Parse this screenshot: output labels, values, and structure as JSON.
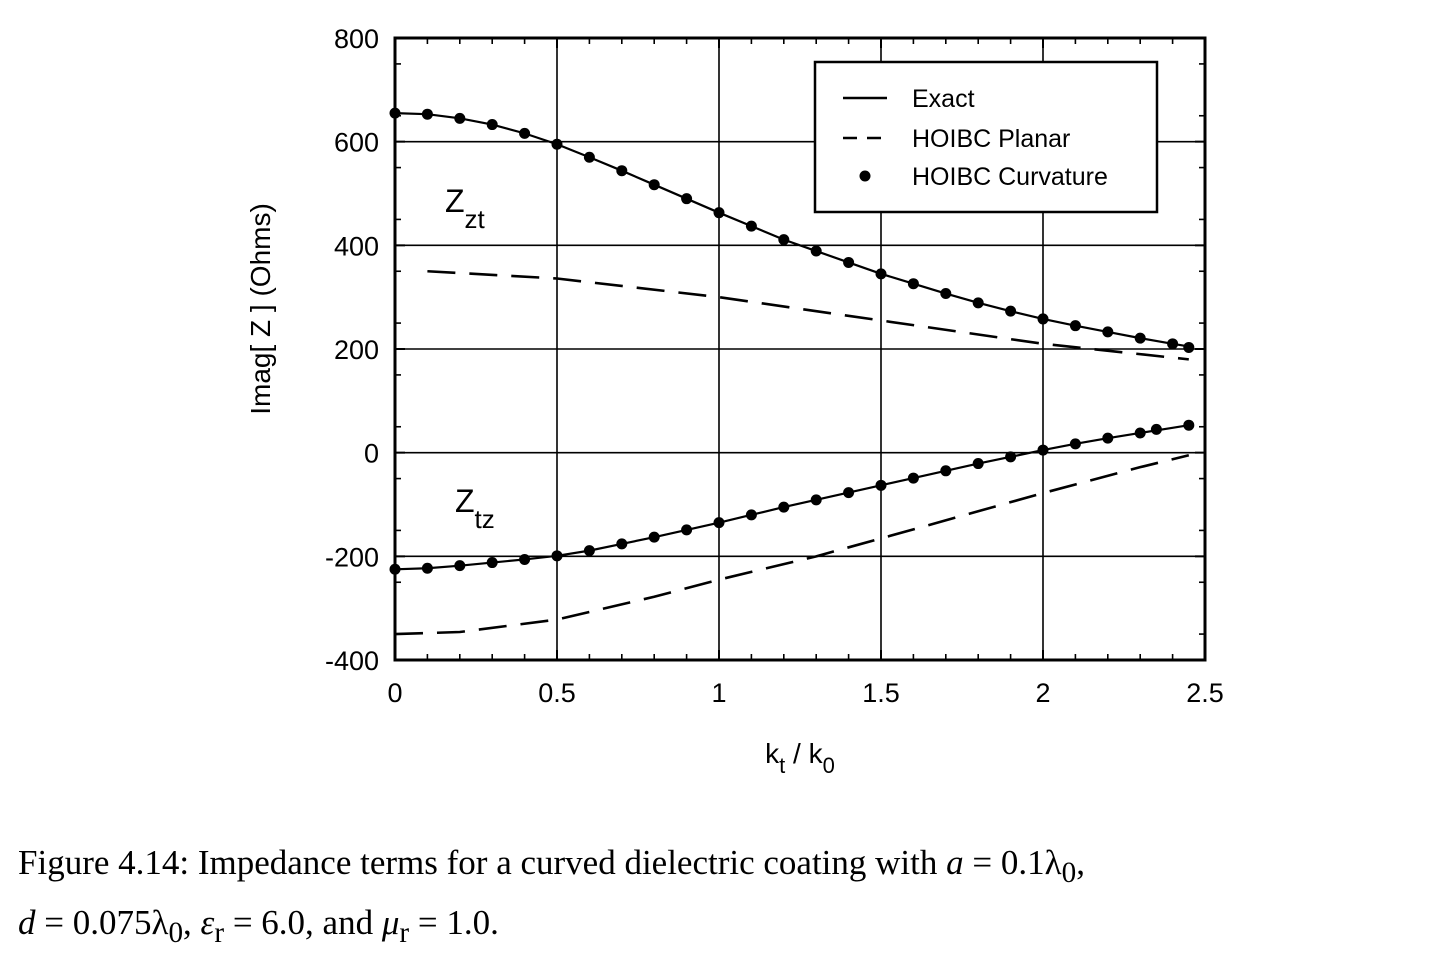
{
  "chart_data": {
    "type": "line",
    "xlabel": "k_t / k_0",
    "xlabel_main": "k",
    "xlabel_sub": "t",
    "xlabel_slash": " / k",
    "xlabel_sub2": "0",
    "ylabel": "Imag[ Z ] (Ohms)",
    "xlim": [
      0,
      2.5
    ],
    "ylim": [
      -400,
      800
    ],
    "x_ticks": [
      "0",
      "0.5",
      "1",
      "1.5",
      "2",
      "2.5"
    ],
    "y_ticks": [
      "800",
      "600",
      "400",
      "200",
      "0",
      "-200",
      "-400"
    ],
    "grid": true,
    "legend_position": "top-right",
    "legend": [
      "Exact",
      "HOIBC Planar",
      "HOIBC Curvature"
    ],
    "annotations": [
      {
        "main": "Z",
        "sub": "zt"
      },
      {
        "main": "Z",
        "sub": "tz"
      }
    ],
    "series": [
      {
        "name": "Exact",
        "style": "solid",
        "group": "zt",
        "x": [
          0,
          0.1,
          0.2,
          0.3,
          0.4,
          0.5,
          0.6,
          0.7,
          0.8,
          0.9,
          1.0,
          1.1,
          1.2,
          1.3,
          1.4,
          1.5,
          1.6,
          1.7,
          1.8,
          1.9,
          2.0,
          2.1,
          2.2,
          2.3,
          2.4,
          2.45
        ],
        "y": [
          655,
          653,
          645,
          633,
          616,
          595,
          570,
          544,
          517,
          490,
          463,
          437,
          411,
          389,
          367,
          345,
          326,
          307,
          289,
          273,
          258,
          245,
          233,
          221,
          210,
          205
        ]
      },
      {
        "name": "HOIBC Planar",
        "style": "dashed",
        "group": "zt",
        "x": [
          0.1,
          0.5,
          1.0,
          1.5,
          2.0,
          2.45
        ],
        "y": [
          350,
          336,
          300,
          255,
          210,
          180
        ]
      },
      {
        "name": "HOIBC Curvature",
        "style": "markers",
        "group": "zt",
        "x": [
          0,
          0.1,
          0.2,
          0.3,
          0.4,
          0.5,
          0.6,
          0.7,
          0.8,
          0.9,
          1.0,
          1.1,
          1.2,
          1.3,
          1.4,
          1.5,
          1.6,
          1.7,
          1.8,
          1.9,
          2.0,
          2.1,
          2.2,
          2.3,
          2.4,
          2.45
        ],
        "y": [
          655,
          653,
          645,
          633,
          616,
          595,
          570,
          544,
          517,
          490,
          463,
          437,
          411,
          389,
          367,
          345,
          326,
          307,
          289,
          273,
          258,
          245,
          233,
          221,
          210,
          203
        ]
      },
      {
        "name": "Exact",
        "style": "solid",
        "group": "tz",
        "x": [
          0,
          0.1,
          0.2,
          0.3,
          0.4,
          0.5,
          0.6,
          0.7,
          0.8,
          0.9,
          1.0,
          1.1,
          1.2,
          1.3,
          1.4,
          1.5,
          1.6,
          1.7,
          1.8,
          1.9,
          2.0,
          2.1,
          2.2,
          2.3,
          2.4,
          2.45
        ],
        "y": [
          -225,
          -223,
          -218,
          -212,
          -206,
          -199,
          -189,
          -176,
          -163,
          -149,
          -135,
          -120,
          -105,
          -91,
          -77,
          -63,
          -49,
          -35,
          -21,
          -8,
          5,
          17,
          28,
          38,
          48,
          53
        ]
      },
      {
        "name": "HOIBC Planar",
        "style": "dashed",
        "group": "tz",
        "x": [
          0,
          0.2,
          0.5,
          0.8,
          1.0,
          1.3,
          1.6,
          2.0,
          2.3,
          2.45
        ],
        "y": [
          -350,
          -346,
          -322,
          -278,
          -245,
          -200,
          -148,
          -78,
          -28,
          -5
        ]
      },
      {
        "name": "HOIBC Curvature",
        "style": "markers",
        "group": "tz",
        "x": [
          0,
          0.1,
          0.2,
          0.3,
          0.4,
          0.5,
          0.6,
          0.7,
          0.8,
          0.9,
          1.0,
          1.1,
          1.2,
          1.3,
          1.4,
          1.5,
          1.6,
          1.7,
          1.8,
          1.9,
          2.0,
          2.1,
          2.2,
          2.3,
          2.35,
          2.45
        ],
        "y": [
          -225,
          -223,
          -218,
          -212,
          -206,
          -199,
          -189,
          -176,
          -163,
          -149,
          -135,
          -120,
          -105,
          -91,
          -77,
          -63,
          -49,
          -35,
          -21,
          -8,
          5,
          17,
          28,
          38,
          45,
          53
        ]
      }
    ]
  },
  "caption": {
    "prefix": "Figure 4.14: Impedance terms for a curved dielectric coating with",
    "a_expr": "a",
    "a_value": " = 0.1λ",
    "a_sub": "0",
    "d_expr": "d",
    "d_value": " = 0.075λ",
    "d_sub": "0",
    "eps_expr": "ε",
    "eps_sub": "r",
    "eps_value": " = 6.0, and ",
    "mu_expr": "μ",
    "mu_sub": "r",
    "mu_value": " = 1.0."
  }
}
